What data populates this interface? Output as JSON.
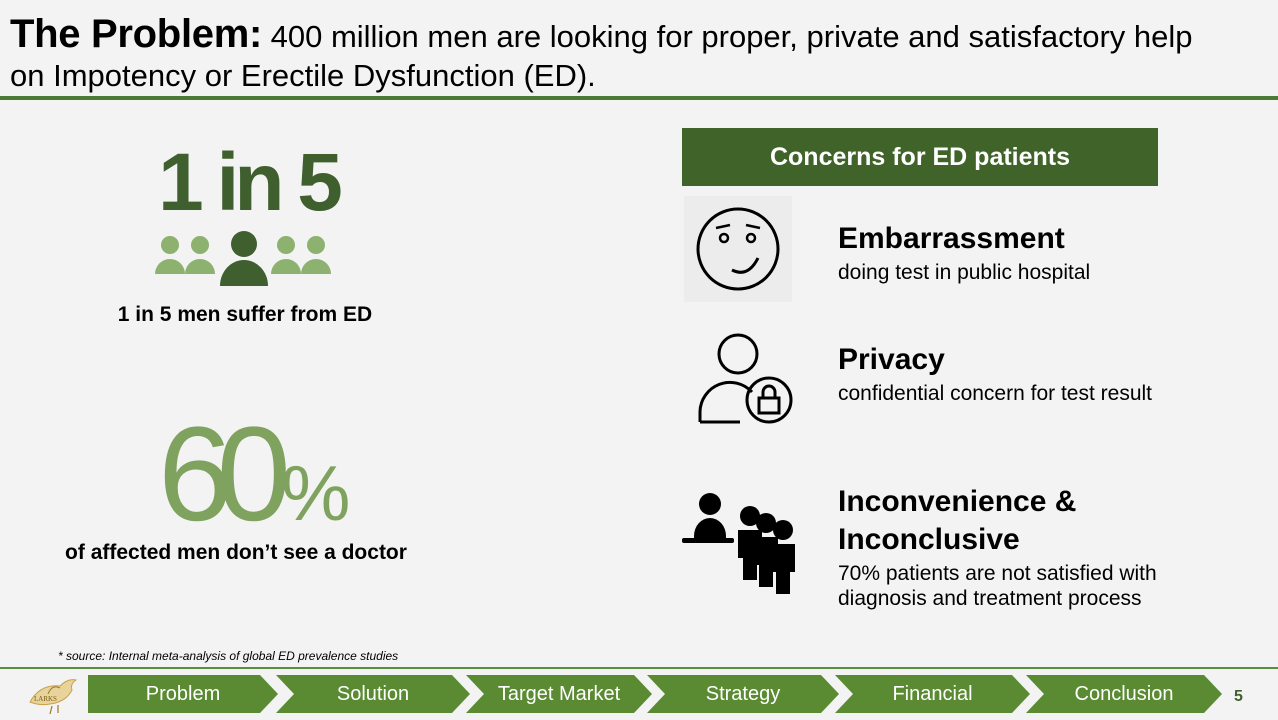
{
  "title": {
    "bold": "The Problem:",
    "line1_rest": " 400 million men are looking for proper, private and satisfactory help",
    "line2": "on Impotency or Erectile Dysfunction (ED)."
  },
  "stats": {
    "stat1_big": "1 in 5",
    "stat1_caption": "1 in 5 men suffer from ED",
    "stat2_number": "60",
    "stat2_percent": "%",
    "stat2_caption": "of affected men don’t see a doctor"
  },
  "source_note": "* source: Internal meta-analysis of global ED prevalence studies",
  "concerns": {
    "header": "Concerns for ED patients",
    "items": [
      {
        "title": "Embarrassment",
        "desc": "doing test in public hospital",
        "icon": "embarrassed-face-icon"
      },
      {
        "title": "Privacy",
        "desc": "confidential concern for test result",
        "icon": "user-lock-icon"
      },
      {
        "title": "Inconvenience & Inconclusive",
        "desc": "70% patients are not satisfied with diagnosis and treatment process",
        "icon": "queue-people-icon"
      }
    ]
  },
  "nav": {
    "logo_text": "LARKS",
    "steps": [
      "Problem",
      "Solution",
      "Target Market",
      "Strategy",
      "Financial",
      "Conclusion"
    ]
  },
  "page_number": "5",
  "colors": {
    "dark_green": "#3f6328",
    "accent_green": "#5a8a32",
    "light_green": "#7fa35f"
  }
}
